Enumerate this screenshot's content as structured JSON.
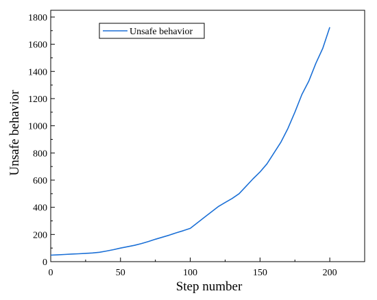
{
  "chart_data": {
    "type": "line",
    "xlabel": "Step number",
    "ylabel": "Unsafe behavior",
    "xlim": [
      0,
      225
    ],
    "ylim": [
      0,
      1850
    ],
    "x_ticks": [
      0,
      50,
      100,
      150,
      200
    ],
    "y_ticks": [
      0,
      200,
      400,
      600,
      800,
      1000,
      1200,
      1400,
      1600,
      1800
    ],
    "grid": false,
    "legend_position": "top-left",
    "series": [
      {
        "name": "Unsafe behavior",
        "color": "#1a6fd6",
        "x": [
          0,
          5,
          10,
          15,
          20,
          25,
          30,
          35,
          40,
          45,
          50,
          55,
          60,
          65,
          70,
          75,
          80,
          85,
          90,
          95,
          100,
          105,
          110,
          115,
          120,
          125,
          130,
          135,
          140,
          145,
          150,
          155,
          160,
          165,
          170,
          175,
          180,
          185,
          190,
          195,
          200
        ],
        "values": [
          48,
          50,
          53,
          56,
          58,
          61,
          64,
          69,
          78,
          88,
          100,
          110,
          120,
          133,
          148,
          165,
          180,
          195,
          212,
          228,
          245,
          285,
          325,
          365,
          405,
          435,
          465,
          500,
          555,
          610,
          660,
          720,
          800,
          880,
          980,
          1100,
          1230,
          1330,
          1460,
          1570,
          1725
        ]
      }
    ]
  }
}
